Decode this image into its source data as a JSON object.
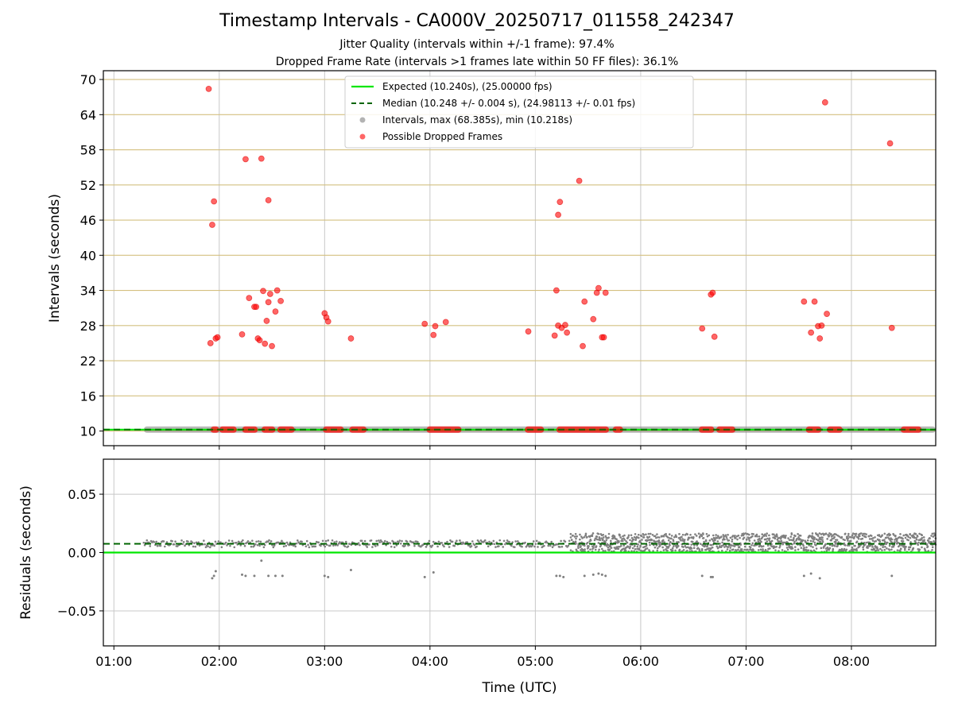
{
  "chart_data": [
    {
      "type": "scatter",
      "title": "Timestamp Intervals - CA000V_20250717_011558_242347",
      "subtitle_lines": [
        "Jitter Quality (intervals within +/-1 frame): 97.4%",
        "Dropped Frame Rate (intervals >1 frames late within 50 FF files): 36.1%"
      ],
      "xlabel": "",
      "ylabel": "Intervals (seconds)",
      "xlim": [
        "00:54",
        "08:48"
      ],
      "ylim": [
        7.5,
        71.5
      ],
      "y_ticks": [
        10,
        16,
        22,
        28,
        34,
        40,
        46,
        52,
        58,
        64,
        70
      ],
      "x_ticks": [
        "01:00",
        "02:00",
        "03:00",
        "04:00",
        "05:00",
        "06:00",
        "07:00",
        "08:00"
      ],
      "grid": true,
      "legend_placement": "top-center",
      "legend": [
        "Expected (10.240s), (25.00000 fps)",
        "Median (10.248 +/- 0.004 s), (24.98113 +/- 0.01 fps)",
        "Intervals, max (68.385s), min (10.218s)",
        "Possible Dropped Frames"
      ],
      "expected_interval": 10.24,
      "median_interval": 10.248,
      "intervals_range": {
        "x_start": "01:17",
        "x_end": "08:48",
        "typical": 10.24,
        "max": 68.385,
        "min": 10.218
      },
      "dropped_frames": [
        [
          "01:54",
          68.4
        ],
        [
          "01:55",
          25.0
        ],
        [
          "01:56",
          45.2
        ],
        [
          "01:57",
          49.2
        ],
        [
          "01:58",
          25.8
        ],
        [
          "01:59",
          26.0
        ],
        [
          "02:13",
          26.5
        ],
        [
          "02:15",
          56.4
        ],
        [
          "02:17",
          32.7
        ],
        [
          "02:20",
          31.2
        ],
        [
          "02:21",
          31.2
        ],
        [
          "02:22",
          25.8
        ],
        [
          "02:23",
          25.5
        ],
        [
          "02:24",
          56.5
        ],
        [
          "02:25",
          33.9
        ],
        [
          "02:26",
          24.9
        ],
        [
          "02:27",
          28.8
        ],
        [
          "02:28",
          32.0
        ],
        [
          "02:29",
          33.4
        ],
        [
          "02:30",
          24.5
        ],
        [
          "02:28",
          49.4
        ],
        [
          "02:32",
          30.4
        ],
        [
          "02:33",
          34.0
        ],
        [
          "02:35",
          32.2
        ],
        [
          "03:00",
          30.1
        ],
        [
          "03:01",
          29.4
        ],
        [
          "03:02",
          28.7
        ],
        [
          "03:15",
          25.8
        ],
        [
          "03:57",
          28.3
        ],
        [
          "04:02",
          26.4
        ],
        [
          "04:03",
          27.9
        ],
        [
          "04:09",
          28.6
        ],
        [
          "04:56",
          27.0
        ],
        [
          "05:11",
          26.3
        ],
        [
          "05:12",
          34.0
        ],
        [
          "05:13",
          28.0
        ],
        [
          "05:13",
          46.9
        ],
        [
          "05:14",
          49.1
        ],
        [
          "05:15",
          27.6
        ],
        [
          "05:17",
          28.1
        ],
        [
          "05:18",
          26.8
        ],
        [
          "05:25",
          52.7
        ],
        [
          "05:27",
          24.5
        ],
        [
          "05:28",
          32.1
        ],
        [
          "05:33",
          29.1
        ],
        [
          "05:35",
          33.6
        ],
        [
          "05:36",
          34.4
        ],
        [
          "05:38",
          26.0
        ],
        [
          "05:39",
          26.0
        ],
        [
          "05:40",
          33.6
        ],
        [
          "06:35",
          27.5
        ],
        [
          "06:40",
          33.3
        ],
        [
          "06:41",
          33.6
        ],
        [
          "06:42",
          26.1
        ],
        [
          "07:33",
          32.1
        ],
        [
          "07:37",
          26.8
        ],
        [
          "07:39",
          32.1
        ],
        [
          "07:41",
          27.9
        ],
        [
          "07:42",
          25.8
        ],
        [
          "07:43",
          28.0
        ],
        [
          "07:45",
          66.1
        ],
        [
          "07:46",
          30.0
        ],
        [
          "08:22",
          59.1
        ],
        [
          "08:23",
          27.6
        ]
      ],
      "dropped_at_baseline_bands": [
        [
          "01:55",
          "02:00"
        ],
        [
          "02:00",
          "02:10"
        ],
        [
          "02:13",
          "02:22"
        ],
        [
          "02:24",
          "02:32"
        ],
        [
          "02:33",
          "02:43"
        ],
        [
          "02:59",
          "03:11"
        ],
        [
          "03:14",
          "03:24"
        ],
        [
          "03:58",
          "04:18"
        ],
        [
          "04:54",
          "05:05"
        ],
        [
          "05:12",
          "05:42"
        ],
        [
          "05:44",
          "05:50"
        ],
        [
          "06:33",
          "06:42"
        ],
        [
          "06:43",
          "06:54"
        ],
        [
          "07:34",
          "07:43"
        ],
        [
          "07:46",
          "07:55"
        ],
        [
          "08:28",
          "08:40"
        ]
      ]
    },
    {
      "type": "scatter",
      "xlabel": "Time (UTC)",
      "ylabel": "Residuals (seconds)",
      "xlim": [
        "00:54",
        "08:48"
      ],
      "ylim": [
        -0.08,
        0.08
      ],
      "y_ticks": [
        0.05,
        0.0,
        -0.05
      ],
      "y_tick_labels": [
        "0.05",
        "0.00",
        "−0.05"
      ],
      "x_ticks": [
        "01:00",
        "02:00",
        "03:00",
        "04:00",
        "05:00",
        "06:00",
        "07:00",
        "08:00"
      ],
      "grid": true,
      "expected_residual": 0.0,
      "median_residual": 0.0075,
      "residual_clusters": [
        {
          "x_start": "01:17",
          "x_end": "05:20",
          "center": 0.0075,
          "spread": 0.003
        },
        {
          "x_start": "05:20",
          "x_end": "08:48",
          "band_low": 0.0005,
          "band_high": 0.0165
        }
      ],
      "negative_residuals": [
        [
          "01:56",
          -0.022
        ],
        [
          "01:57",
          -0.02
        ],
        [
          "01:58",
          -0.016
        ],
        [
          "02:13",
          -0.019
        ],
        [
          "02:15",
          -0.02
        ],
        [
          "02:20",
          -0.02
        ],
        [
          "02:24",
          -0.007
        ],
        [
          "02:28",
          -0.02
        ],
        [
          "02:32",
          -0.02
        ],
        [
          "02:36",
          -0.02
        ],
        [
          "03:00",
          -0.02
        ],
        [
          "03:02",
          -0.021
        ],
        [
          "03:15",
          -0.015
        ],
        [
          "03:57",
          -0.021
        ],
        [
          "04:02",
          -0.017
        ],
        [
          "05:12",
          -0.02
        ],
        [
          "05:14",
          -0.02
        ],
        [
          "05:16",
          -0.021
        ],
        [
          "05:28",
          -0.02
        ],
        [
          "05:33",
          -0.019
        ],
        [
          "05:36",
          -0.018
        ],
        [
          "05:38",
          -0.019
        ],
        [
          "05:40",
          -0.02
        ],
        [
          "06:35",
          -0.02
        ],
        [
          "06:40",
          -0.021
        ],
        [
          "06:41",
          -0.021
        ],
        [
          "07:33",
          -0.02
        ],
        [
          "07:37",
          -0.018
        ],
        [
          "07:42",
          -0.022
        ],
        [
          "08:23",
          -0.02
        ]
      ]
    }
  ],
  "colors": {
    "expected": "#00e600",
    "median": "#006400",
    "intervals": "#808080",
    "dropped": "#ff0000",
    "ygrid": "#d4c080",
    "grid": "#c8c8c8"
  }
}
